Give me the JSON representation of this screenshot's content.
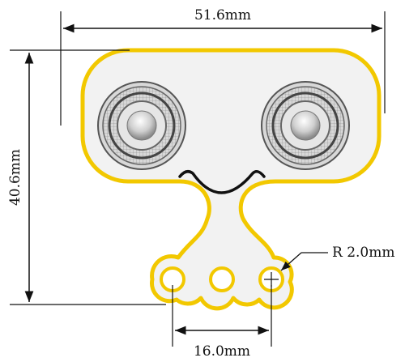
{
  "dimensions": {
    "width_label": "51.6mm",
    "height_label": "40.6mm",
    "pad_pitch_label": "16.0mm",
    "radius_label": "R 2.0mm"
  },
  "colors": {
    "outline": "#F2C800",
    "board_fill": "#F2F2F2",
    "dimension_line": "#111111",
    "smile": "#111111"
  },
  "icons": {
    "left_sensor": "ultrasonic-transducer-icon",
    "right_sensor": "ultrasonic-transducer-icon",
    "mouth": "smile-icon",
    "pads": "circle-pad-icon"
  }
}
